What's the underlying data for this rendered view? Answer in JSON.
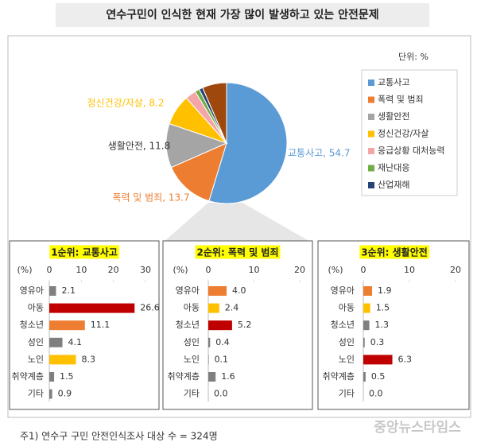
{
  "title": "연수구민이 인식한 현재 가장 많이 발생하고 있는 안전문제",
  "footnote": "주1) 연수구 구민 안전인식조사 대상 수 = 324명",
  "watermark": "중앙뉴스타임스",
  "chart_data": [
    {
      "type": "pie",
      "unit_label": "단위: %",
      "legend": "right",
      "categories": [
        "교통사고",
        "폭력 및 범죄",
        "생활안전",
        "정신건강/자살",
        "응급상황 대처능력",
        "재난대응",
        "산업재해",
        null
      ],
      "values": [
        54.7,
        13.7,
        11.8,
        8.2,
        2.9,
        1.2,
        1.0,
        6.5
      ],
      "value_labels": [
        "교통사고, 54.7",
        "폭력 및 범죄, 13.7",
        "생활안전, 11.8",
        "정신건강/자살, 8.2",
        null,
        null,
        null,
        null
      ],
      "colors": [
        "#5b9bd5",
        "#ed7d31",
        "#a5a5a5",
        "#ffc000",
        "#f4a6a6",
        "#70ad47",
        "#264478",
        "#9e480e"
      ]
    },
    {
      "type": "bar",
      "orientation": "horizontal",
      "title": "1순위: 교통사고",
      "ylabel": "(%)",
      "categories": [
        "영유아",
        "아동",
        "청소년",
        "성인",
        "노인",
        "취약계층",
        "기타"
      ],
      "values": [
        2.1,
        26.6,
        11.1,
        4.1,
        8.3,
        1.5,
        0.9
      ],
      "value_labels": [
        "2.1",
        "26.6",
        "11.1",
        "4.1",
        "8.3",
        "1.5",
        "0.9"
      ],
      "colors": [
        "#7f7f7f",
        "#c00000",
        "#ed7d31",
        "#7f7f7f",
        "#ffc000",
        "#7f7f7f",
        "#7f7f7f"
      ],
      "xlim": [
        0,
        30
      ],
      "xticks": [
        0,
        10,
        20,
        30
      ]
    },
    {
      "type": "bar",
      "orientation": "horizontal",
      "title": "2순위: 폭력 및 범죄",
      "ylabel": "(%)",
      "categories": [
        "영유아",
        "아동",
        "청소년",
        "성인",
        "노인",
        "취약계층",
        "기타"
      ],
      "values": [
        4.0,
        2.4,
        5.2,
        0.4,
        0.1,
        1.6,
        0.0
      ],
      "value_labels": [
        "4.0",
        "2.4",
        "5.2",
        "0.4",
        "0.1",
        "1.6",
        "0.0"
      ],
      "colors": [
        "#ed7d31",
        "#ffc000",
        "#c00000",
        "#7f7f7f",
        "#7f7f7f",
        "#7f7f7f",
        "#7f7f7f"
      ],
      "xlim": [
        0,
        20
      ],
      "xticks": [
        0,
        10,
        20
      ]
    },
    {
      "type": "bar",
      "orientation": "horizontal",
      "title": "3순위: 생활안전",
      "ylabel": "(%)",
      "categories": [
        "영유아",
        "아동",
        "청소년",
        "성인",
        "노인",
        "취약계층",
        "기타"
      ],
      "values": [
        1.9,
        1.5,
        1.3,
        0.3,
        6.3,
        0.5,
        0.0
      ],
      "value_labels": [
        "1.9",
        "1.5",
        "1.3",
        "0.3",
        "6.3",
        "0.5",
        "0.0"
      ],
      "colors": [
        "#ed7d31",
        "#ffc000",
        "#7f7f7f",
        "#7f7f7f",
        "#c00000",
        "#7f7f7f",
        "#7f7f7f"
      ],
      "xlim": [
        0,
        20
      ],
      "xticks": [
        0,
        10,
        20
      ]
    }
  ]
}
